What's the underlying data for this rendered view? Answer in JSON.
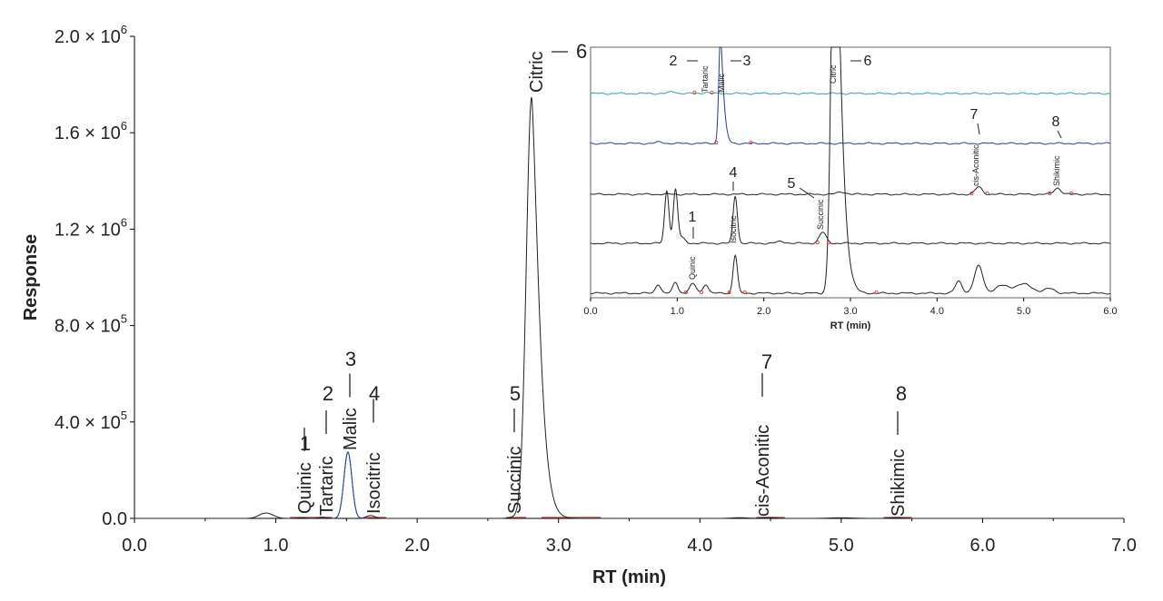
{
  "chart_data": [
    {
      "type": "line",
      "xlabel": "RT (min)",
      "ylabel": "Response",
      "xlim": [
        0,
        7
      ],
      "ylim": [
        0,
        2000000
      ],
      "x_ticks": [
        "0.0",
        "1.0",
        "2.0",
        "3.0",
        "4.0",
        "5.0",
        "6.0",
        "7.0"
      ],
      "y_ticks": [
        {
          "mantissa": "0.0",
          "exp": ""
        },
        {
          "mantissa": "4.0 × 10",
          "exp": "5"
        },
        {
          "mantissa": "8.0 × 10",
          "exp": "5"
        },
        {
          "mantissa": "1.2 × 10",
          "exp": "6"
        },
        {
          "mantissa": "1.6 × 10",
          "exp": "6"
        },
        {
          "mantissa": "2.0 × 10",
          "exp": "6"
        }
      ],
      "grid": false,
      "peaks": [
        {
          "num": "1",
          "name": "Quinic",
          "rt": 1.18,
          "height": 3000
        },
        {
          "num": "2",
          "name": "Tartaric",
          "rt": 1.33,
          "height": 5000
        },
        {
          "num": "3",
          "name": "Malic",
          "rt": 1.51,
          "height": 275000
        },
        {
          "num": "4",
          "name": "Isocitric",
          "rt": 1.67,
          "height": 12000
        },
        {
          "num": "5",
          "name": "Succinic",
          "rt": 2.68,
          "height": 5000
        },
        {
          "num": "6",
          "name": "Citric",
          "rt": 2.81,
          "height": 1750000
        },
        {
          "num": "7",
          "name": "cis-Aconitic",
          "rt": 4.48,
          "height": 4000
        },
        {
          "num": "8",
          "name": "Shikimic",
          "rt": 5.39,
          "height": 4000
        }
      ],
      "colors": {
        "trace": "#222222",
        "blue_trace": "#2a4aa8",
        "baseline": "#cc3333",
        "axis": "#000000"
      }
    },
    {
      "type": "line",
      "inset": true,
      "xlabel": "RT (min)",
      "xlim": [
        0,
        6
      ],
      "x_ticks": [
        "0.0",
        "1.0",
        "2.0",
        "3.0",
        "4.0",
        "5.0",
        "6.0"
      ],
      "traces": [
        {
          "color": "#3c9aa8",
          "peaks": "2 (Tartaric)"
        },
        {
          "color": "#2a3c8c",
          "peaks": "3 (Malic)"
        },
        {
          "color": "#222222",
          "peaks": "7 (cis-Aconitic), 8 (Shikimic)"
        },
        {
          "color": "#222222",
          "peaks": "4 (Isocitric), 5 (Succinic)"
        },
        {
          "color": "#222222",
          "peaks": "1 (Quinic), 6 (Citric)"
        }
      ],
      "labels": [
        {
          "num": "2",
          "name": "Tartaric",
          "rt": 1.33
        },
        {
          "num": "3",
          "name": "Malic",
          "rt": 1.5
        },
        {
          "num": "6",
          "name": "Citric",
          "rt": 2.8
        },
        {
          "num": "7",
          "name": "cis-Aconitic",
          "rt": 4.48
        },
        {
          "num": "8",
          "name": "Shikimic",
          "rt": 5.39
        },
        {
          "num": "4",
          "name": "Isocitric",
          "rt": 1.67
        },
        {
          "num": "5",
          "name": "Succinic",
          "rt": 2.68
        },
        {
          "num": "1",
          "name": "Quinic",
          "rt": 1.18
        }
      ]
    }
  ]
}
